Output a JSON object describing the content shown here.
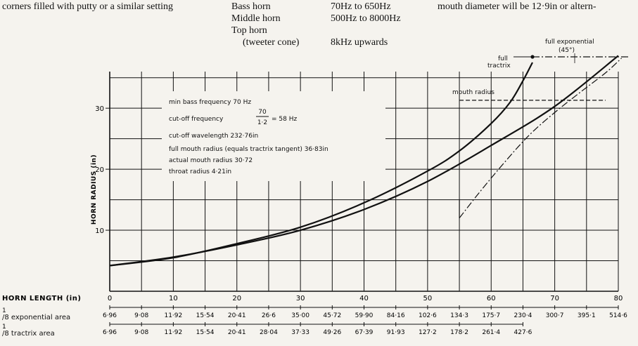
{
  "page": {
    "left_text": "corners filled with putty or a similar setting",
    "horn_table": [
      {
        "name": "Bass horn",
        "range": "70Hz to 650Hz"
      },
      {
        "name": "Middle horn",
        "range": "500Hz to 8000Hz"
      },
      {
        "name": "Top horn",
        "range": ""
      },
      {
        "name": "(tweeter cone)",
        "range": "8kHz upwards"
      }
    ],
    "right_text": "mouth diameter will be 12·9in or altern-"
  },
  "chart_data": {
    "type": "line",
    "ylabel": "HORN RADIUS (in)",
    "xlabel": "HORN LENGTH (in)",
    "xlim": [
      0,
      80
    ],
    "ylim": [
      0,
      36
    ],
    "x_ticks": [
      "0",
      "10",
      "20",
      "30",
      "40",
      "50",
      "60",
      "70",
      "80"
    ],
    "y_ticks": [
      "10",
      "20",
      "30"
    ],
    "grid": true,
    "series": [
      {
        "name": "full tractrix",
        "x": [
          0,
          10,
          20,
          30,
          40,
          50,
          55,
          60,
          63,
          65,
          66.5
        ],
        "y": [
          4.2,
          5.5,
          7.8,
          10.5,
          14.5,
          19.7,
          23.0,
          27.5,
          31.0,
          34.5,
          37.5
        ]
      },
      {
        "name": "full exponential (45°)",
        "x": [
          0,
          10,
          20,
          30,
          40,
          50,
          60,
          70,
          80
        ],
        "y": [
          4.2,
          5.6,
          7.6,
          10.0,
          13.4,
          18.0,
          23.9,
          30.3,
          38.6
        ]
      },
      {
        "name": "",
        "x": [
          55,
          58,
          62,
          66,
          70,
          74,
          78,
          80.5
        ],
        "y": [
          12.0,
          16.0,
          21.0,
          25.6,
          29.3,
          32.6,
          35.8,
          38.2
        ]
      }
    ],
    "annotations": {
      "tractrix_label_1": "full",
      "tractrix_label_2": "tractrix",
      "exp_label_1": "full exponential",
      "exp_label_2": "(45°)",
      "mouth_label": "mouth radius",
      "mouth_radius_y": 31.3,
      "mouth_line_x": [
        55,
        78
      ]
    },
    "info_box": {
      "line1": "min bass frequency 70 Hz",
      "line2_prefix": "cut-off frequency",
      "frac_num": "70",
      "frac_den": "1·2",
      "line2_suffix": "= 58 Hz",
      "line3": "cut-off wavelength  232·76in",
      "line4": "full mouth radius (equals tractrix tangent) 36·83in",
      "line5": "actual mouth radius  30·72",
      "line6": "throat radius  4·21in"
    },
    "area_rows": [
      {
        "label": "1/8 exponential area",
        "values": [
          "6·96",
          "9·08",
          "11·92",
          "15·54",
          "20·41",
          "26·6",
          "35·00",
          "45·72",
          "59·90",
          "84·16",
          "102·6",
          "134·3",
          "175·7",
          "230·4",
          "300·7",
          "395·1",
          "514·6"
        ]
      },
      {
        "label": "1/8 tractrix area",
        "values": [
          "6·96",
          "9·08",
          "11·92",
          "15·54",
          "20·41",
          "28·04",
          "37·33",
          "49·26",
          "67·39",
          "91·93",
          "127·2",
          "178·2",
          "261·4",
          "427·6"
        ]
      }
    ]
  }
}
